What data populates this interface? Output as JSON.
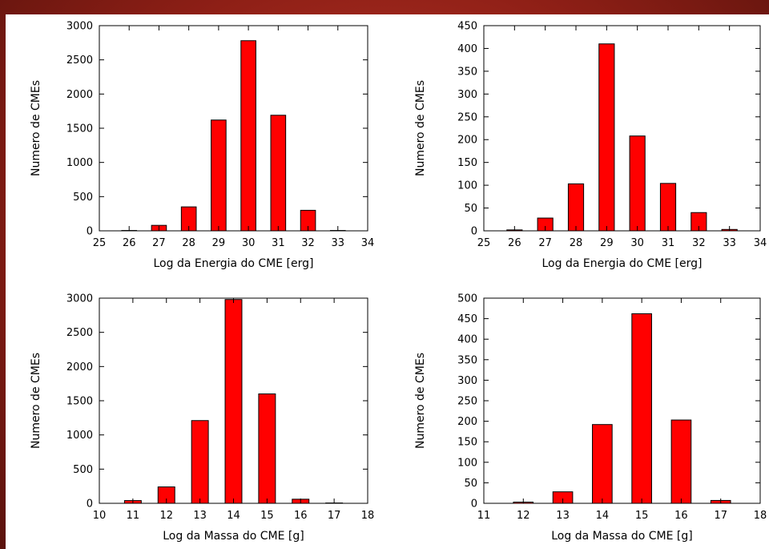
{
  "colors": {
    "bar_fill": "#ff0000",
    "bar_stroke": "#000000",
    "background": "#ffffff"
  },
  "chart_data": [
    {
      "type": "bar",
      "categories": [
        26,
        27,
        28,
        29,
        30,
        31,
        32,
        33
      ],
      "values": [
        5,
        80,
        350,
        1620,
        2780,
        1690,
        300,
        5
      ],
      "xlim": [
        25,
        34
      ],
      "ylim": [
        0,
        3000
      ],
      "xticks": [
        25,
        26,
        27,
        28,
        29,
        30,
        31,
        32,
        33,
        34
      ],
      "yticks": [
        0,
        500,
        1000,
        1500,
        2000,
        2500,
        3000
      ],
      "xlabel": "Log da Energia do CME [erg]",
      "ylabel": "Numero de CMEs",
      "title": "",
      "grid": false
    },
    {
      "type": "bar",
      "categories": [
        26,
        27,
        28,
        29,
        30,
        31,
        32,
        33
      ],
      "values": [
        2,
        28,
        103,
        410,
        208,
        104,
        40,
        3
      ],
      "xlim": [
        25,
        34
      ],
      "ylim": [
        0,
        450
      ],
      "xticks": [
        25,
        26,
        27,
        28,
        29,
        30,
        31,
        32,
        33,
        34
      ],
      "yticks": [
        0,
        50,
        100,
        150,
        200,
        250,
        300,
        350,
        400,
        450
      ],
      "xlabel": "Log da Energia do CME [erg]",
      "ylabel": "Numero de CMEs",
      "title": "",
      "grid": false
    },
    {
      "type": "bar",
      "categories": [
        11,
        12,
        13,
        14,
        15,
        16,
        17
      ],
      "values": [
        40,
        240,
        1210,
        2980,
        1600,
        60,
        5
      ],
      "xlim": [
        10,
        18
      ],
      "ylim": [
        0,
        3000
      ],
      "xticks": [
        10,
        11,
        12,
        13,
        14,
        15,
        16,
        17,
        18
      ],
      "yticks": [
        0,
        500,
        1000,
        1500,
        2000,
        2500,
        3000
      ],
      "xlabel": "Log da Massa do CME [g]",
      "ylabel": "Numero de CMEs",
      "title": "",
      "grid": false
    },
    {
      "type": "bar",
      "categories": [
        12,
        13,
        14,
        15,
        16,
        17
      ],
      "values": [
        3,
        28,
        192,
        462,
        203,
        7
      ],
      "xlim": [
        11,
        18
      ],
      "ylim": [
        0,
        500
      ],
      "xticks": [
        11,
        12,
        13,
        14,
        15,
        16,
        17,
        18
      ],
      "yticks": [
        0,
        50,
        100,
        150,
        200,
        250,
        300,
        350,
        400,
        450,
        500
      ],
      "xlabel": "Log da Massa do CME [g]",
      "ylabel": "Numero de CMEs",
      "title": "",
      "grid": false
    }
  ]
}
